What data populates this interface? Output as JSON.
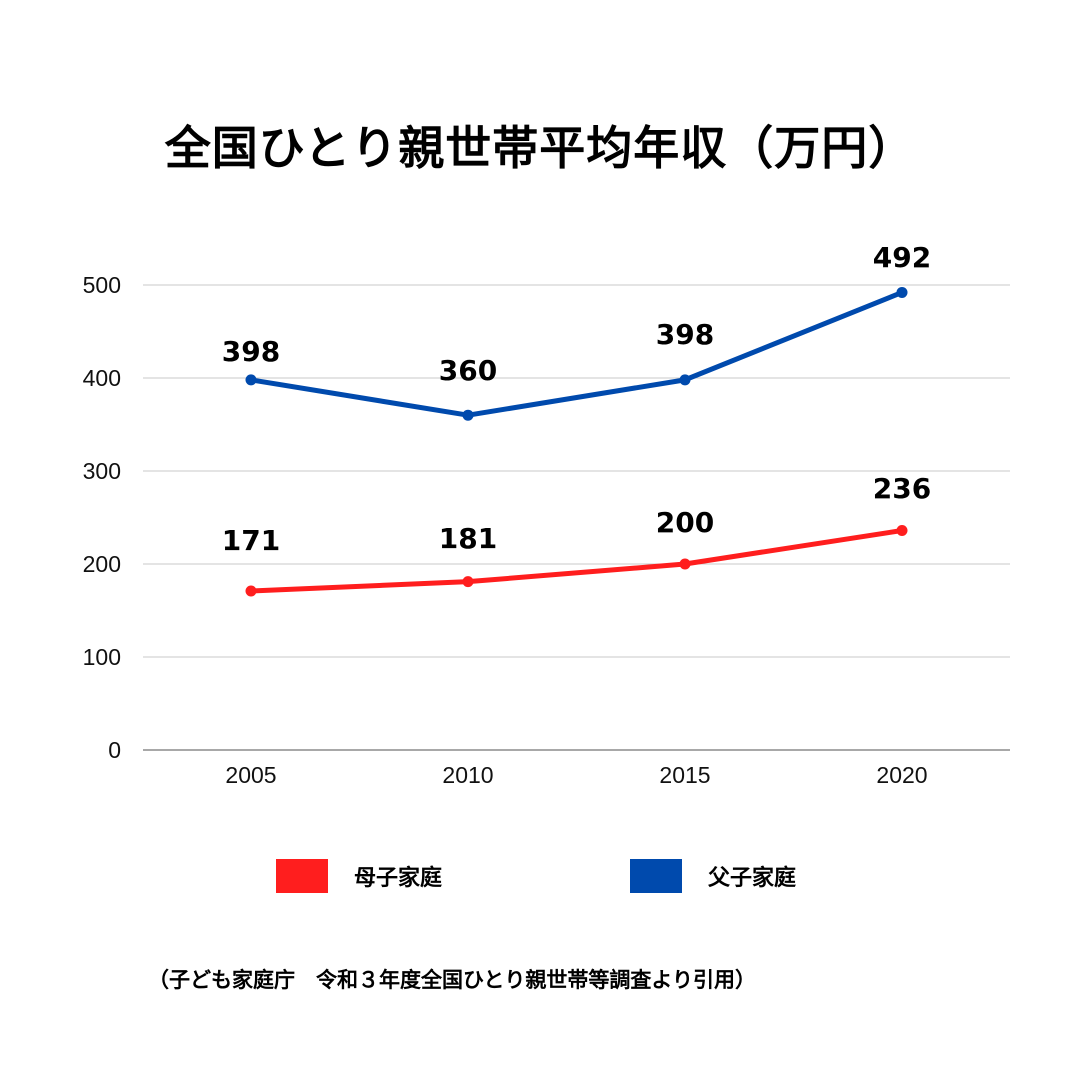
{
  "chart_data": {
    "type": "line",
    "title": "全国ひとり親世帯平均年収（万円）",
    "categories": [
      "2005",
      "2010",
      "2015",
      "2020"
    ],
    "series": [
      {
        "name": "母子家庭",
        "values": [
          171,
          181,
          200,
          236
        ],
        "color": "#ff1e1e"
      },
      {
        "name": "父子家庭",
        "values": [
          398,
          360,
          398,
          492
        ],
        "color": "#004aad"
      }
    ],
    "ylim": [
      0,
      500
    ],
    "yticks": [
      0,
      100,
      200,
      300,
      400,
      500
    ],
    "grid": true,
    "legend_position": "bottom"
  },
  "footer": {
    "source": "（子ども家庭庁　令和３年度全国ひとり親世帯等調査より引用）"
  }
}
